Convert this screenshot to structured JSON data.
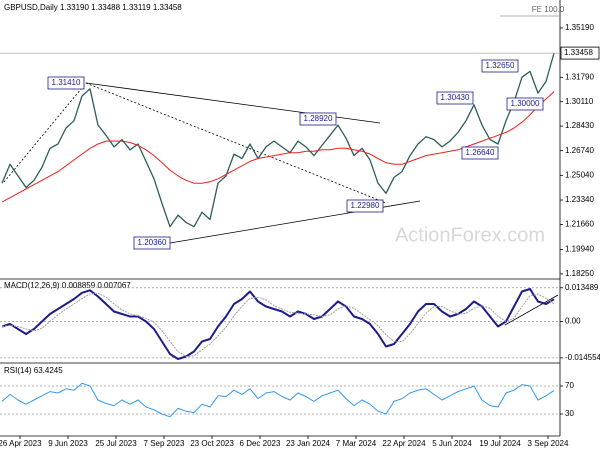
{
  "chart_data": [
    {
      "type": "line",
      "legend": "GBPUSD,Daily  1.33190 1.33488 1.33119 1.33458",
      "ylim": [
        1.1797,
        1.3677
      ],
      "grid": false,
      "yticks": [
        {
          "value": 1.3519,
          "label": "1.35190"
        },
        {
          "value": 1.3179,
          "label": "1.31790"
        },
        {
          "value": 1.3011,
          "label": "1.30110"
        },
        {
          "value": 1.2843,
          "label": "1.28430"
        },
        {
          "value": 1.2674,
          "label": "1.26740"
        },
        {
          "value": 1.2504,
          "label": "1.25040"
        },
        {
          "value": 1.2334,
          "label": "1.23340"
        },
        {
          "value": 1.2166,
          "label": "1.21660"
        },
        {
          "value": 1.1994,
          "label": "1.19940"
        },
        {
          "value": 1.1825,
          "label": "1.18250"
        }
      ],
      "last_price": {
        "value": 1.33458,
        "label": "1.33458"
      },
      "annotations": [
        "1.31410",
        "1.28920",
        "1.22980",
        "1.20360",
        "1.26640",
        "1.30430",
        "1.32650",
        "1.30000"
      ],
      "fe_label": "FE 100.0",
      "watermark": "ActionForex.com",
      "series": [
        {
          "color": "#2e5c5c",
          "values": [
            1.245,
            1.258,
            1.25,
            1.242,
            1.247,
            1.256,
            1.269,
            1.272,
            1.283,
            1.288,
            1.305,
            1.31,
            1.285,
            1.278,
            1.27,
            1.275,
            1.268,
            1.272,
            1.26,
            1.248,
            1.231,
            1.215,
            1.223,
            1.218,
            1.215,
            1.225,
            1.22,
            1.245,
            1.25,
            1.265,
            1.262,
            1.272,
            1.262,
            1.27,
            1.274,
            1.27,
            1.266,
            1.274,
            1.27,
            1.264,
            1.271,
            1.278,
            1.285,
            1.276,
            1.264,
            1.269,
            1.261,
            1.245,
            1.238,
            1.249,
            1.253,
            1.264,
            1.272,
            1.277,
            1.275,
            1.27,
            1.274,
            1.28,
            1.288,
            1.299,
            1.285,
            1.275,
            1.272,
            1.288,
            1.301,
            1.318,
            1.322,
            1.307,
            1.315,
            1.3346
          ]
        },
        {
          "color": "#e8231f",
          "values": [
            1.232,
            1.235,
            1.238,
            1.241,
            1.244,
            1.247,
            1.25,
            1.253,
            1.257,
            1.261,
            1.265,
            1.269,
            1.272,
            1.274,
            1.274,
            1.274,
            1.273,
            1.271,
            1.268,
            1.264,
            1.259,
            1.254,
            1.25,
            1.247,
            1.245,
            1.245,
            1.246,
            1.248,
            1.251,
            1.254,
            1.257,
            1.26,
            1.262,
            1.263,
            1.264,
            1.265,
            1.266,
            1.266,
            1.267,
            1.267,
            1.268,
            1.268,
            1.269,
            1.269,
            1.268,
            1.267,
            1.265,
            1.262,
            1.259,
            1.258,
            1.258,
            1.26,
            1.262,
            1.264,
            1.265,
            1.266,
            1.267,
            1.268,
            1.27,
            1.272,
            1.274,
            1.276,
            1.278,
            1.28,
            1.283,
            1.287,
            1.292,
            1.298,
            1.303,
            1.308
          ]
        }
      ]
    },
    {
      "type": "line",
      "title": "MACD(12,26,9) 0.008859 0.007067",
      "ylim": [
        -0.0162,
        0.0162
      ],
      "grid": true,
      "yticks": [
        0.013489,
        {
          "value": 0,
          "label": "0.00"
        },
        -0.014554
      ],
      "series": [
        {
          "color": "#1c1c8a",
          "values": [
            -0.002,
            -0.001,
            -0.003,
            -0.005,
            -0.003,
            0.0,
            0.003,
            0.005,
            0.007,
            0.009,
            0.0115,
            0.0125,
            0.01,
            0.007,
            0.004,
            0.003,
            0.002,
            0.002,
            0.0,
            -0.003,
            -0.008,
            -0.013,
            -0.015,
            -0.014,
            -0.012,
            -0.008,
            -0.007,
            -0.002,
            0.002,
            0.007,
            0.009,
            0.012,
            0.008,
            0.006,
            0.005,
            0.004,
            0.002,
            0.004,
            0.003,
            0.001,
            0.002,
            0.005,
            0.008,
            0.006,
            0.002,
            0.001,
            -0.001,
            -0.005,
            -0.01,
            -0.009,
            -0.005,
            -0.001,
            0.004,
            0.007,
            0.007,
            0.004,
            0.002,
            0.003,
            0.005,
            0.008,
            0.006,
            0.002,
            -0.002,
            0.0,
            0.006,
            0.012,
            0.013,
            0.008,
            0.007,
            0.0089
          ]
        },
        {
          "color": "#a0a0a0",
          "values": [
            -0.002,
            -0.0016,
            -0.002,
            -0.003,
            -0.0037,
            -0.0027,
            0.0,
            0.0027,
            0.005,
            0.007,
            0.0092,
            0.011,
            0.0113,
            0.0098,
            0.007,
            0.0047,
            0.003,
            0.0023,
            0.0013,
            -0.0003,
            -0.0037,
            -0.008,
            -0.012,
            -0.014,
            -0.0137,
            -0.0113,
            -0.009,
            -0.0057,
            -0.0023,
            0.0023,
            0.006,
            0.0093,
            0.0097,
            0.0087,
            0.0063,
            0.005,
            0.0037,
            0.0033,
            0.003,
            0.0027,
            0.002,
            0.0027,
            0.005,
            0.0063,
            0.0053,
            0.003,
            0.0007,
            -0.0017,
            -0.0053,
            -0.008,
            -0.008,
            -0.005,
            -0.0007,
            0.0033,
            0.006,
            0.006,
            0.0043,
            0.003,
            0.0033,
            0.0053,
            0.0063,
            0.0053,
            0.002,
            0.0,
            0.0013,
            0.006,
            0.0103,
            0.011,
            0.0093,
            0.0071
          ]
        }
      ]
    },
    {
      "type": "line",
      "title": "RSI(14) 63.4245",
      "ylim": [
        0,
        100
      ],
      "grid": true,
      "yticks": [
        70,
        30
      ],
      "date_labels": [
        "26 Apr 2023",
        "9 Jun 2023",
        "25 Jul 2023",
        "7 Sep 2023",
        "23 Oct 2023",
        "6 Dec 2023",
        "23 Jan 2024",
        "7 Mar 2024",
        "22 Apr 2024",
        "5 Jun 2024",
        "19 Jul 2024",
        "3 Sep 2024"
      ],
      "series": [
        {
          "color": "#3399ee",
          "values": [
            48,
            58,
            50,
            44,
            50,
            56,
            62,
            60,
            66,
            64,
            74,
            70,
            50,
            45,
            42,
            50,
            44,
            50,
            40,
            36,
            30,
            26,
            38,
            34,
            32,
            44,
            40,
            56,
            55,
            64,
            58,
            66,
            52,
            60,
            62,
            55,
            50,
            60,
            55,
            48,
            56,
            60,
            64,
            52,
            42,
            50,
            44,
            34,
            30,
            48,
            52,
            60,
            64,
            66,
            58,
            50,
            56,
            62,
            66,
            70,
            50,
            42,
            40,
            60,
            64,
            72,
            70,
            50,
            56,
            63.4245
          ]
        }
      ]
    }
  ]
}
